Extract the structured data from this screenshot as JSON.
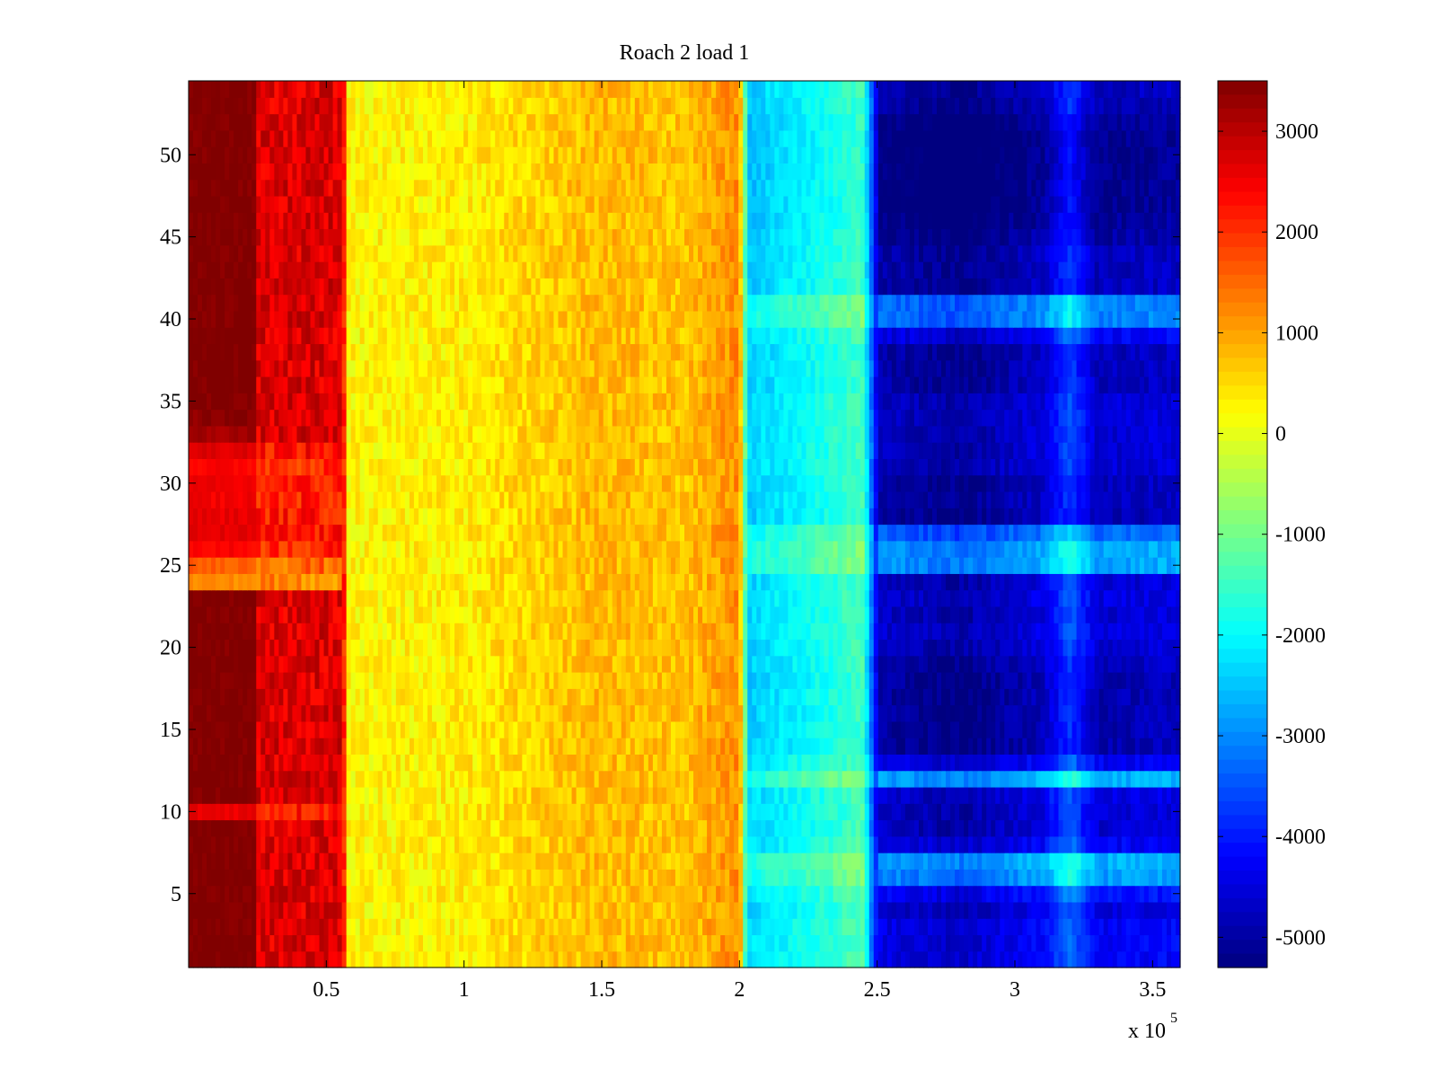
{
  "chart_data": {
    "type": "heatmap",
    "title": "Roach 2 load 1",
    "xlabel": "",
    "ylabel": "",
    "x_multiplier_label": "x 10",
    "x_multiplier_exponent": "5",
    "xlim": [
      0,
      3.6
    ],
    "ylim": [
      0.5,
      54.5
    ],
    "x_ticks": [
      0.5,
      1,
      1.5,
      2,
      2.5,
      3,
      3.5
    ],
    "x_tick_labels": [
      "0.5",
      "1",
      "1.5",
      "2",
      "2.5",
      "3",
      "3.5"
    ],
    "y_ticks": [
      5,
      10,
      15,
      20,
      25,
      30,
      35,
      40,
      45,
      50
    ],
    "y_tick_labels": [
      "5",
      "10",
      "15",
      "20",
      "25",
      "30",
      "35",
      "40",
      "45",
      "50"
    ],
    "rows": 54,
    "x_bins": [
      0,
      0.25,
      0.56,
      1.4,
      1.95,
      2.03,
      2.45,
      2.5,
      3.6
    ],
    "column_profile": [
      {
        "x": 0.0,
        "value": 3500
      },
      {
        "x": 0.24,
        "value": 3500
      },
      {
        "x": 0.26,
        "value": 2600
      },
      {
        "x": 0.56,
        "value": 2600
      },
      {
        "x": 0.58,
        "value": 250
      },
      {
        "x": 1.0,
        "value": 350
      },
      {
        "x": 1.5,
        "value": 800
      },
      {
        "x": 1.8,
        "value": 700
      },
      {
        "x": 2.0,
        "value": 1200
      },
      {
        "x": 2.03,
        "value": -2300
      },
      {
        "x": 2.3,
        "value": -1700
      },
      {
        "x": 2.45,
        "value": -1300
      },
      {
        "x": 2.5,
        "value": -4400
      },
      {
        "x": 2.8,
        "value": -4700
      },
      {
        "x": 3.1,
        "value": -4200
      },
      {
        "x": 3.2,
        "value": -3200
      },
      {
        "x": 3.3,
        "value": -4300
      },
      {
        "x": 3.6,
        "value": -4200
      }
    ],
    "left_block_row_values": [
      3500,
      3500,
      3500,
      3500,
      3500,
      3500,
      3500,
      3500,
      3500,
      2600,
      3500,
      3500,
      3500,
      3500,
      3500,
      3500,
      3500,
      3500,
      3500,
      3500,
      3500,
      3500,
      3500,
      1200,
      1600,
      2400,
      2600,
      2600,
      2500,
      2500,
      2400,
      2700,
      3200,
      3400,
      3500,
      3500,
      3500,
      3500,
      3500,
      3500,
      3500,
      3500,
      3500,
      3500,
      3500,
      3500,
      3500,
      3500,
      3500,
      3500,
      3500,
      3500,
      3500,
      3500
    ],
    "right_block_row_offsets": [
      3,
      2,
      0,
      -200,
      200,
      1400,
      1600,
      0,
      -300,
      -300,
      -200,
      1600,
      0,
      -600,
      -600,
      -600,
      -600,
      -600,
      -500,
      -300,
      -200,
      -300,
      -200,
      -300,
      1500,
      1500,
      1000,
      -600,
      -500,
      -500,
      -300,
      -300,
      -300,
      -300,
      -300,
      -500,
      -500,
      -500,
      0,
      1200,
      1200,
      -500,
      -500,
      -500,
      -700,
      -800,
      -900,
      -900,
      -900,
      -900,
      -900,
      -800,
      -600,
      -500
    ],
    "colorbar": {
      "min": -5300,
      "max": 3500,
      "ticks": [
        3000,
        2000,
        1000,
        0,
        -1000,
        -2000,
        -3000,
        -4000,
        -5000
      ],
      "tick_labels": [
        "3000",
        "2000",
        "1000",
        "0",
        "-1000",
        "-2000",
        "-3000",
        "-4000",
        "-5000"
      ],
      "colormap": "jet"
    }
  }
}
